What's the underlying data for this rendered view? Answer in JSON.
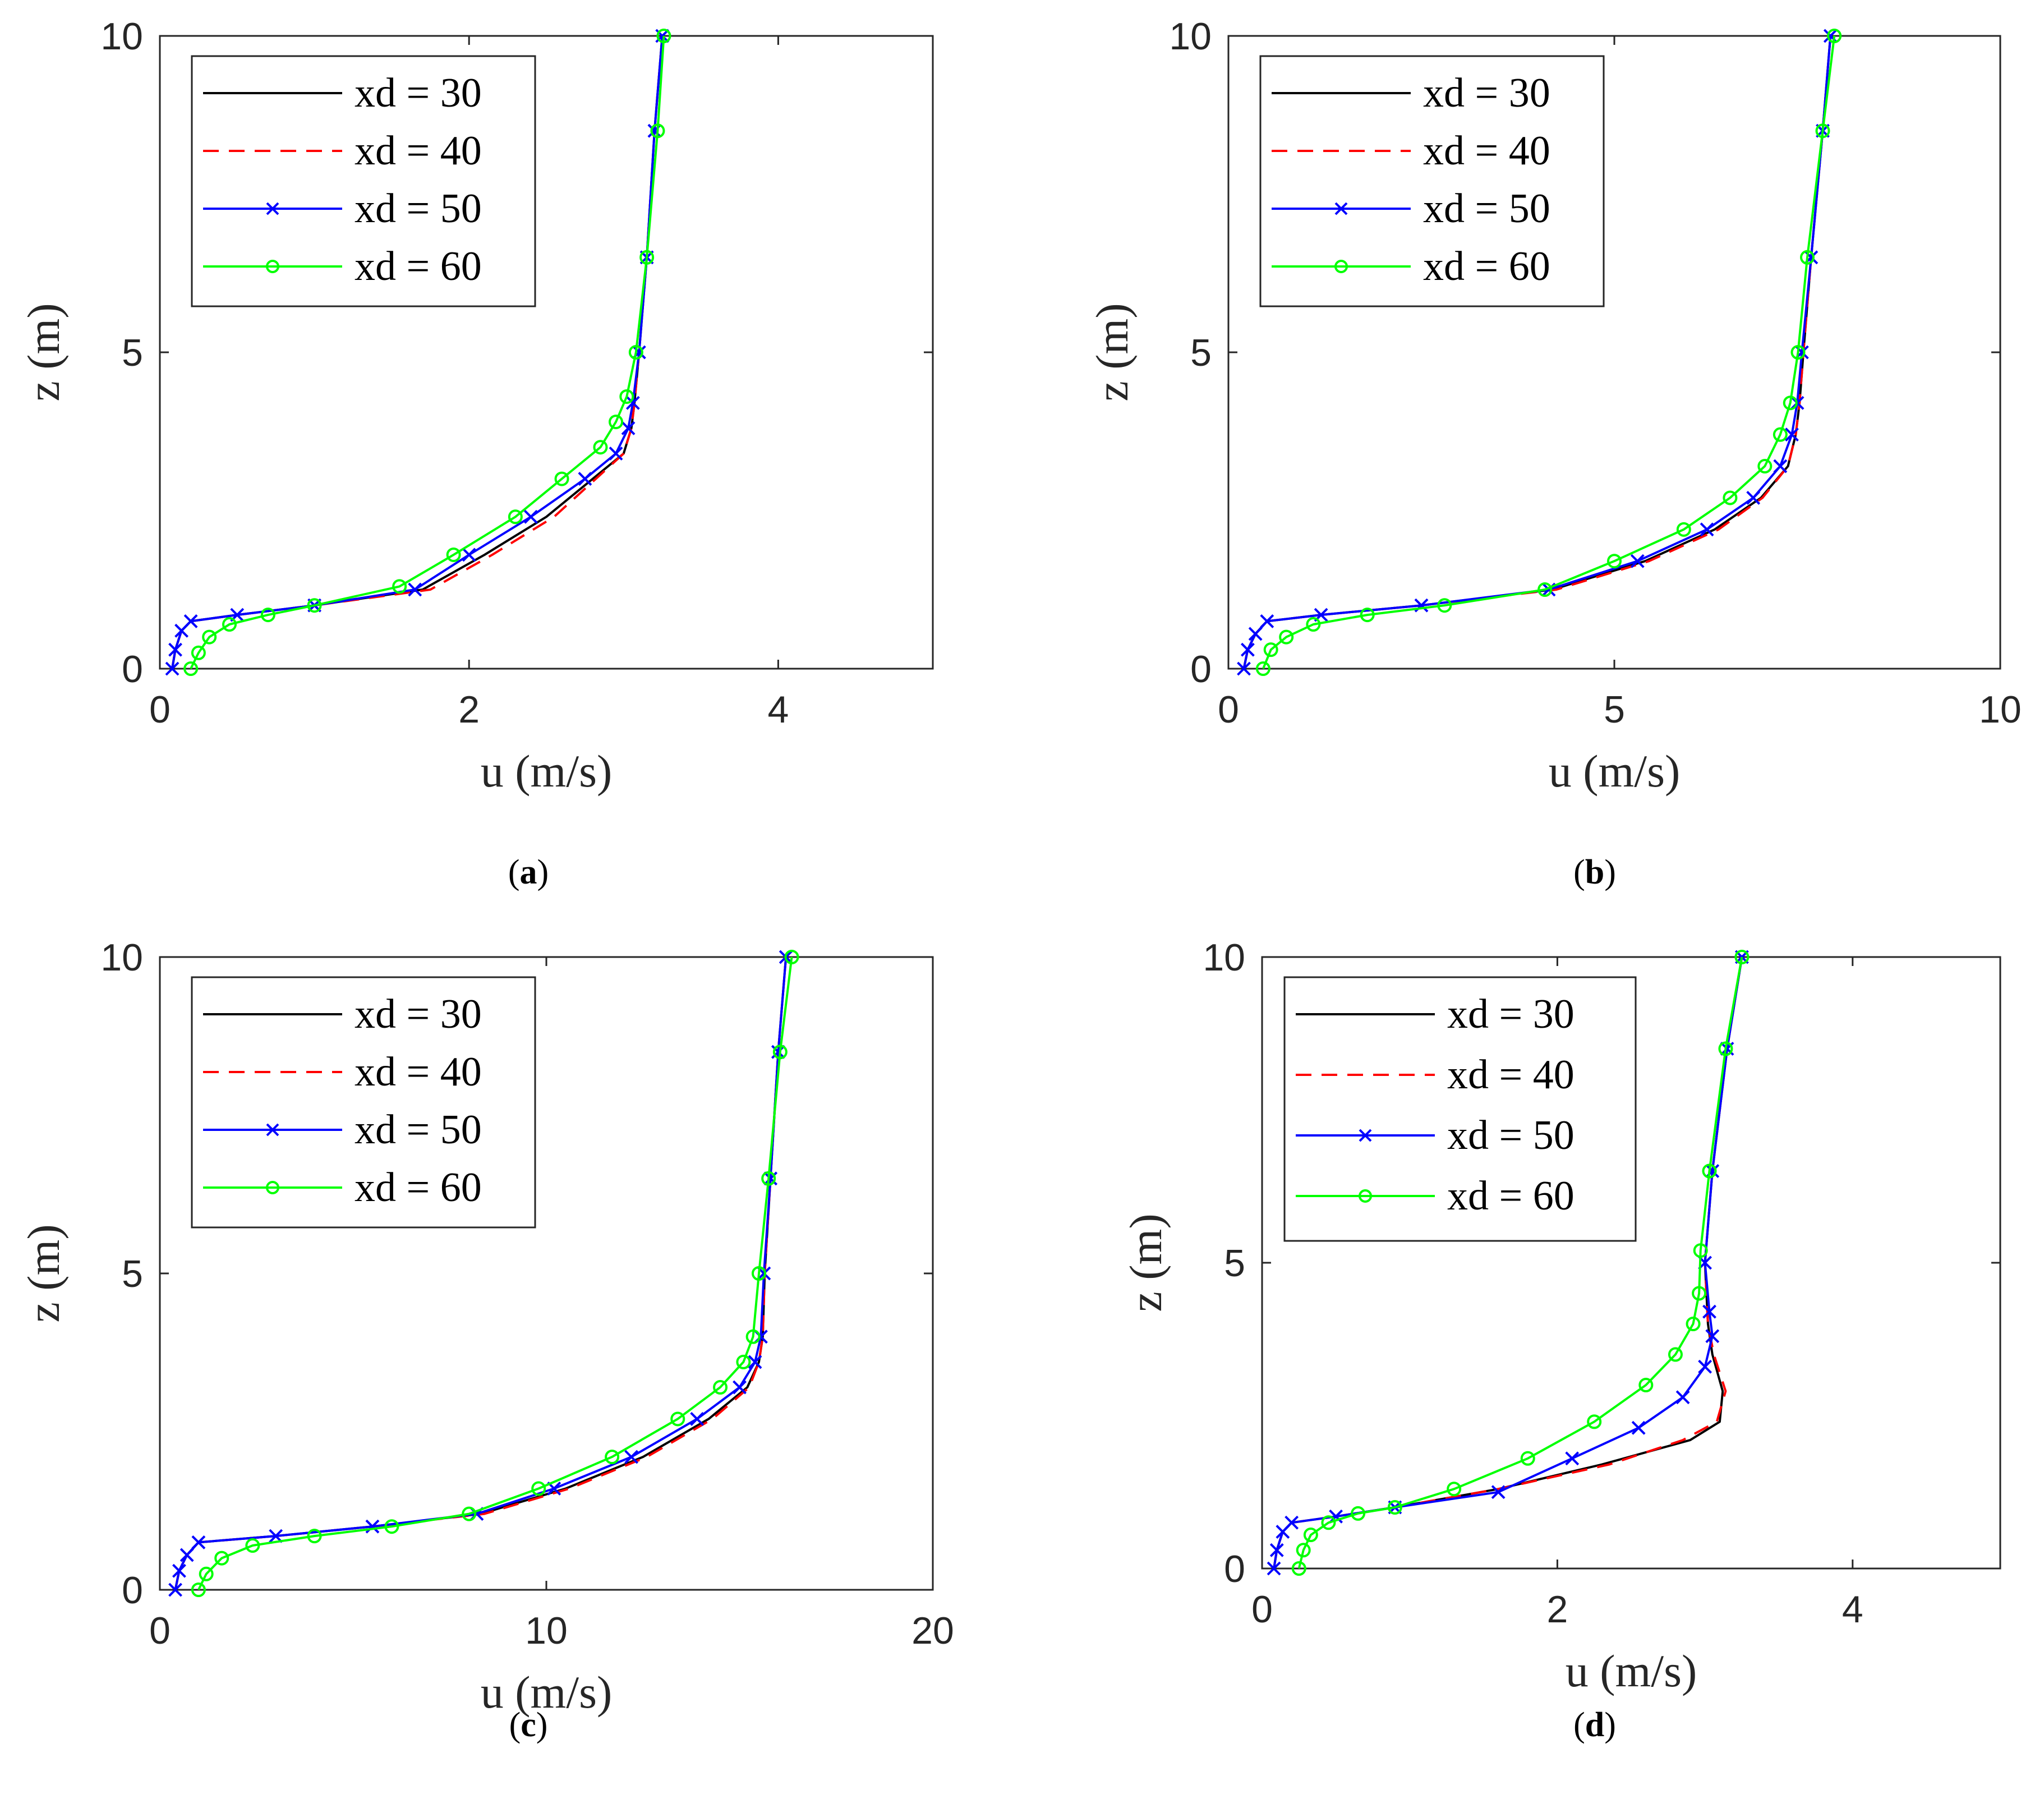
{
  "colors": {
    "xd30": "#000000",
    "xd40": "#ff0000",
    "xd50": "#0000ff",
    "xd60": "#00ff00",
    "axis": "#262626"
  },
  "chart_data": [
    {
      "type": "line",
      "caption": "a",
      "xlabel": "u (m/s)",
      "ylabel": "z (m)",
      "xlim": [
        0,
        5
      ],
      "ylim": [
        0,
        10
      ],
      "xticks": [
        "0",
        "2",
        "4"
      ],
      "xtick_values": [
        0,
        2,
        4
      ],
      "yticks": [
        "0",
        "5",
        "10"
      ],
      "ytick_values": [
        0,
        5,
        10
      ],
      "legend_position": "top-left",
      "series": [
        {
          "name": "xd = 30",
          "style": "solid",
          "marker": "none",
          "x": [
            0.08,
            0.1,
            0.14,
            0.2,
            0.5,
            1.0,
            1.7,
            2.1,
            2.5,
            2.8,
            3.0,
            3.05,
            3.07,
            3.1,
            3.15,
            3.2,
            3.25
          ],
          "z": [
            0,
            0.3,
            0.6,
            0.75,
            0.85,
            1.0,
            1.25,
            1.8,
            2.4,
            3.0,
            3.4,
            3.8,
            4.2,
            5.0,
            6.5,
            8.5,
            10
          ]
        },
        {
          "name": "xd = 40",
          "style": "dashed",
          "marker": "none",
          "x": [
            0.08,
            0.1,
            0.14,
            0.2,
            0.5,
            1.0,
            1.75,
            2.15,
            2.55,
            2.82,
            3.0,
            3.05,
            3.07,
            3.1,
            3.15,
            3.2,
            3.25
          ],
          "z": [
            0,
            0.3,
            0.6,
            0.75,
            0.85,
            1.0,
            1.25,
            1.8,
            2.4,
            3.0,
            3.4,
            3.8,
            4.2,
            5.0,
            6.5,
            8.5,
            10
          ]
        },
        {
          "name": "xd = 50",
          "style": "solid",
          "marker": "x",
          "x": [
            0.08,
            0.1,
            0.14,
            0.2,
            0.5,
            1.0,
            1.65,
            2.0,
            2.4,
            2.75,
            2.95,
            3.03,
            3.06,
            3.1,
            3.15,
            3.2,
            3.25
          ],
          "z": [
            0,
            0.3,
            0.6,
            0.75,
            0.85,
            1.0,
            1.25,
            1.8,
            2.4,
            3.0,
            3.4,
            3.8,
            4.2,
            5.0,
            6.5,
            8.5,
            10
          ]
        },
        {
          "name": "xd = 60",
          "style": "solid",
          "marker": "o",
          "x": [
            0.2,
            0.25,
            0.32,
            0.45,
            0.7,
            1.0,
            1.55,
            1.9,
            2.3,
            2.6,
            2.85,
            2.95,
            3.02,
            3.08,
            3.15,
            3.22,
            3.26
          ],
          "z": [
            0,
            0.25,
            0.5,
            0.7,
            0.85,
            1.0,
            1.3,
            1.8,
            2.4,
            3.0,
            3.5,
            3.9,
            4.3,
            5.0,
            6.5,
            8.5,
            10
          ]
        }
      ]
    },
    {
      "type": "line",
      "caption": "b",
      "xlabel": "u (m/s)",
      "ylabel": "z (m)",
      "xlim": [
        0,
        10
      ],
      "ylim": [
        0,
        10
      ],
      "xticks": [
        "0",
        "5",
        "10"
      ],
      "xtick_values": [
        0,
        5,
        10
      ],
      "yticks": [
        "0",
        "5",
        "10"
      ],
      "ytick_values": [
        0,
        5,
        10
      ],
      "legend_position": "top-left",
      "series": [
        {
          "name": "xd = 30",
          "style": "solid",
          "marker": "none",
          "x": [
            0.2,
            0.25,
            0.35,
            0.5,
            1.2,
            2.5,
            4.2,
            5.4,
            6.3,
            6.9,
            7.25,
            7.35,
            7.4,
            7.45,
            7.55,
            7.7,
            7.8
          ],
          "z": [
            0,
            0.3,
            0.55,
            0.75,
            0.85,
            1.0,
            1.25,
            1.7,
            2.2,
            2.7,
            3.2,
            3.7,
            4.2,
            5.0,
            6.5,
            8.5,
            10
          ]
        },
        {
          "name": "xd = 40",
          "style": "dashed",
          "marker": "none",
          "x": [
            0.2,
            0.25,
            0.35,
            0.5,
            1.2,
            2.5,
            4.25,
            5.45,
            6.35,
            6.92,
            7.25,
            7.35,
            7.4,
            7.45,
            7.55,
            7.7,
            7.8
          ],
          "z": [
            0,
            0.3,
            0.55,
            0.75,
            0.85,
            1.0,
            1.25,
            1.7,
            2.2,
            2.7,
            3.2,
            3.7,
            4.2,
            5.0,
            6.5,
            8.5,
            10
          ]
        },
        {
          "name": "xd = 50",
          "style": "solid",
          "marker": "x",
          "x": [
            0.2,
            0.25,
            0.35,
            0.5,
            1.2,
            2.5,
            4.15,
            5.3,
            6.2,
            6.8,
            7.15,
            7.3,
            7.37,
            7.43,
            7.55,
            7.7,
            7.8
          ],
          "z": [
            0,
            0.3,
            0.55,
            0.75,
            0.85,
            1.0,
            1.25,
            1.7,
            2.2,
            2.7,
            3.2,
            3.7,
            4.2,
            5.0,
            6.5,
            8.5,
            10
          ]
        },
        {
          "name": "xd = 60",
          "style": "solid",
          "marker": "o",
          "x": [
            0.45,
            0.55,
            0.75,
            1.1,
            1.8,
            2.8,
            4.1,
            5.0,
            5.9,
            6.5,
            6.95,
            7.15,
            7.28,
            7.38,
            7.5,
            7.7,
            7.85
          ],
          "z": [
            0,
            0.3,
            0.5,
            0.7,
            0.85,
            1.0,
            1.25,
            1.7,
            2.2,
            2.7,
            3.2,
            3.7,
            4.2,
            5.0,
            6.5,
            8.5,
            10
          ]
        }
      ]
    },
    {
      "type": "line",
      "caption": "c",
      "xlabel": "u (m/s)",
      "ylabel": "z (m)",
      "xlim": [
        0,
        20
      ],
      "ylim": [
        0,
        10
      ],
      "xticks": [
        "0",
        "10",
        "20"
      ],
      "xtick_values": [
        0,
        10,
        20
      ],
      "yticks": [
        "0",
        "5",
        "10"
      ],
      "ytick_values": [
        0,
        5,
        10
      ],
      "legend_position": "top-left",
      "series": [
        {
          "name": "xd = 30",
          "style": "solid",
          "marker": "none",
          "x": [
            0.4,
            0.5,
            0.7,
            1.0,
            3.0,
            5.5,
            8.3,
            10.5,
            12.5,
            14.2,
            15.2,
            15.5,
            15.6,
            15.65,
            15.8,
            16.0,
            16.2
          ],
          "z": [
            0,
            0.3,
            0.55,
            0.75,
            0.85,
            1.0,
            1.2,
            1.6,
            2.1,
            2.7,
            3.2,
            3.6,
            4.0,
            5.0,
            6.5,
            8.5,
            10
          ]
        },
        {
          "name": "xd = 40",
          "style": "dashed",
          "marker": "none",
          "x": [
            0.4,
            0.5,
            0.7,
            1.0,
            3.0,
            5.5,
            8.4,
            10.6,
            12.6,
            14.3,
            15.25,
            15.5,
            15.6,
            15.65,
            15.8,
            16.0,
            16.2
          ],
          "z": [
            0,
            0.3,
            0.55,
            0.75,
            0.85,
            1.0,
            1.2,
            1.6,
            2.1,
            2.7,
            3.2,
            3.6,
            4.0,
            5.0,
            6.5,
            8.5,
            10
          ]
        },
        {
          "name": "xd = 50",
          "style": "solid",
          "marker": "x",
          "x": [
            0.4,
            0.5,
            0.7,
            1.0,
            3.0,
            5.5,
            8.2,
            10.2,
            12.2,
            13.9,
            15.0,
            15.4,
            15.55,
            15.63,
            15.8,
            16.0,
            16.2
          ],
          "z": [
            0,
            0.3,
            0.55,
            0.75,
            0.85,
            1.0,
            1.2,
            1.6,
            2.1,
            2.7,
            3.2,
            3.6,
            4.0,
            5.0,
            6.5,
            8.5,
            10
          ]
        },
        {
          "name": "xd = 60",
          "style": "solid",
          "marker": "o",
          "x": [
            1.0,
            1.2,
            1.6,
            2.4,
            4.0,
            6.0,
            8.0,
            9.8,
            11.7,
            13.4,
            14.5,
            15.1,
            15.35,
            15.5,
            15.75,
            16.05,
            16.35
          ],
          "z": [
            0,
            0.25,
            0.5,
            0.7,
            0.85,
            1.0,
            1.2,
            1.6,
            2.1,
            2.7,
            3.2,
            3.6,
            4.0,
            5.0,
            6.5,
            8.5,
            10
          ]
        }
      ]
    },
    {
      "type": "line",
      "caption": "d",
      "xlabel": "u (m/s)",
      "ylabel": "z (m)",
      "xlim": [
        0,
        5
      ],
      "ylim": [
        0,
        10
      ],
      "xticks": [
        "0",
        "2",
        "4"
      ],
      "xtick_values": [
        0,
        2,
        4
      ],
      "yticks": [
        "0",
        "5",
        "10"
      ],
      "ytick_values": [
        0,
        5,
        10
      ],
      "legend_position": "top-left",
      "series": [
        {
          "name": "xd = 30",
          "style": "solid",
          "marker": "none",
          "x": [
            0.08,
            0.1,
            0.14,
            0.2,
            0.5,
            0.9,
            1.6,
            2.3,
            2.9,
            3.1,
            3.12,
            3.05,
            3.02,
            3.0,
            3.05,
            3.15,
            3.25
          ],
          "z": [
            0,
            0.3,
            0.6,
            0.75,
            0.85,
            1.0,
            1.3,
            1.7,
            2.1,
            2.4,
            2.9,
            3.5,
            4.0,
            5.0,
            6.5,
            8.5,
            10
          ]
        },
        {
          "name": "xd = 40",
          "style": "dashed",
          "marker": "none",
          "x": [
            0.08,
            0.1,
            0.14,
            0.2,
            0.5,
            0.9,
            1.6,
            2.35,
            2.85,
            3.08,
            3.14,
            3.06,
            3.02,
            3.0,
            3.05,
            3.15,
            3.25
          ],
          "z": [
            0,
            0.3,
            0.6,
            0.75,
            0.85,
            1.0,
            1.3,
            1.7,
            2.1,
            2.4,
            2.9,
            3.5,
            4.0,
            5.0,
            6.5,
            8.5,
            10
          ]
        },
        {
          "name": "xd = 50",
          "style": "solid",
          "marker": "x",
          "x": [
            0.08,
            0.1,
            0.14,
            0.2,
            0.5,
            0.9,
            1.6,
            2.1,
            2.55,
            2.85,
            3.0,
            3.05,
            3.03,
            3.0,
            3.05,
            3.15,
            3.25
          ],
          "z": [
            0,
            0.3,
            0.6,
            0.75,
            0.85,
            1.0,
            1.25,
            1.8,
            2.3,
            2.8,
            3.3,
            3.8,
            4.2,
            5.0,
            6.5,
            8.5,
            10
          ]
        },
        {
          "name": "xd = 60",
          "style": "solid",
          "marker": "o",
          "x": [
            0.25,
            0.28,
            0.33,
            0.45,
            0.65,
            0.9,
            1.3,
            1.8,
            2.25,
            2.6,
            2.8,
            2.92,
            2.96,
            2.97,
            3.03,
            3.14,
            3.25
          ],
          "z": [
            0,
            0.3,
            0.55,
            0.75,
            0.9,
            1.0,
            1.3,
            1.8,
            2.4,
            3.0,
            3.5,
            4.0,
            4.5,
            5.2,
            6.5,
            8.5,
            10
          ]
        }
      ]
    }
  ]
}
